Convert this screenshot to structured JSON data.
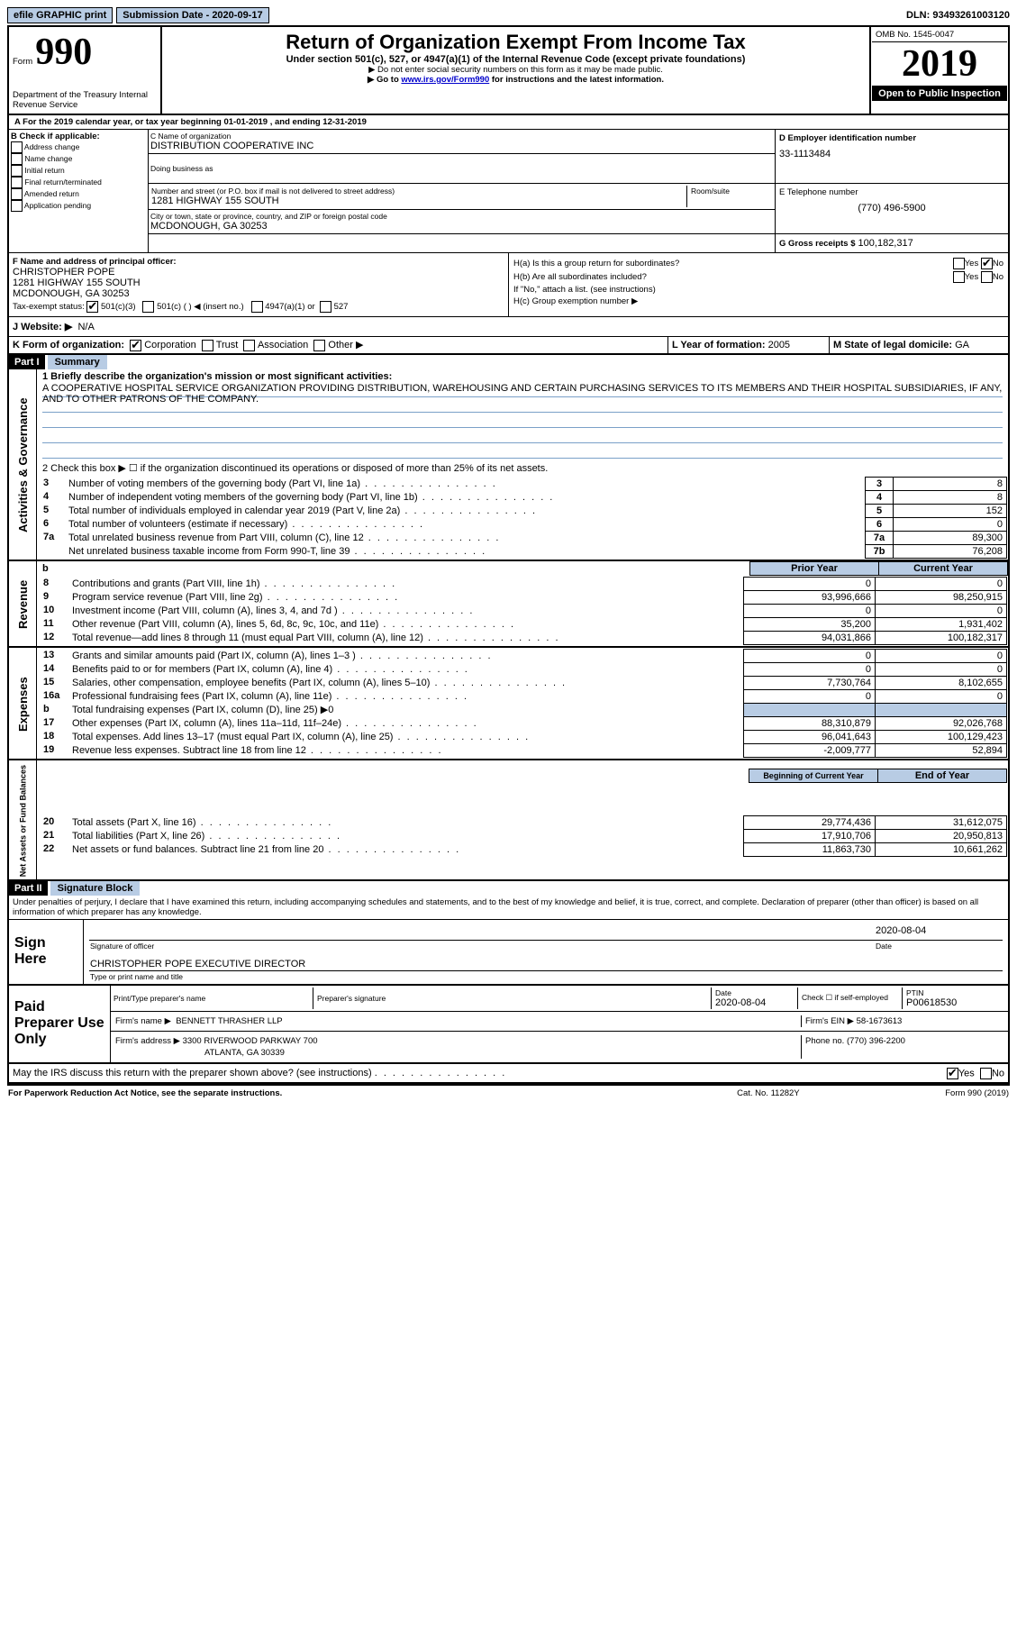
{
  "topbar": {
    "efile": "efile GRAPHIC print",
    "submission_label": "Submission Date - 2020-09-17",
    "dln": "DLN: 93493261003120"
  },
  "header": {
    "form_label": "Form",
    "form_number": "990",
    "dept": "Department of the Treasury Internal Revenue Service",
    "title": "Return of Organization Exempt From Income Tax",
    "subtitle": "Under section 501(c), 527, or 4947(a)(1) of the Internal Revenue Code (except private foundations)",
    "note1": "▶ Do not enter social security numbers on this form as it may be made public.",
    "note2_pre": "▶ Go to ",
    "note2_link": "www.irs.gov/Form990",
    "note2_post": " for instructions and the latest information.",
    "omb": "OMB No. 1545-0047",
    "year": "2019",
    "open_public": "Open to Public Inspection"
  },
  "periodA": "For the 2019 calendar year, or tax year beginning 01-01-2019   , and ending 12-31-2019",
  "boxB": {
    "title": "B Check if applicable:",
    "opts": [
      "Address change",
      "Name change",
      "Initial return",
      "Final return/terminated",
      "Amended return",
      "Application pending"
    ]
  },
  "boxC": {
    "name_label": "C Name of organization",
    "name": "DISTRIBUTION COOPERATIVE INC",
    "dba_label": "Doing business as",
    "addr_label": "Number and street (or P.O. box if mail is not delivered to street address)",
    "room_label": "Room/suite",
    "addr": "1281 HIGHWAY 155 SOUTH",
    "city_label": "City or town, state or province, country, and ZIP or foreign postal code",
    "city": "MCDONOUGH, GA  30253"
  },
  "boxD": {
    "label": "D Employer identification number",
    "value": "33-1113484"
  },
  "boxE": {
    "label": "E Telephone number",
    "value": "(770) 496-5900"
  },
  "boxG": {
    "label": "G Gross receipts $",
    "value": "100,182,317"
  },
  "boxF": {
    "label": "F  Name and address of principal officer:",
    "name": "CHRISTOPHER POPE",
    "addr": "1281 HIGHWAY 155 SOUTH",
    "city": "MCDONOUGH, GA  30253"
  },
  "boxH": {
    "a_label": "H(a)  Is this a group return for subordinates?",
    "b_label": "H(b)  Are all subordinates included?",
    "b_note": "If \"No,\" attach a list. (see instructions)",
    "c_label": "H(c)  Group exemption number ▶",
    "yes": "Yes",
    "no": "No"
  },
  "tax_exempt": {
    "label": "Tax-exempt status:",
    "o1": "501(c)(3)",
    "o2": "501(c) (  ) ◀ (insert no.)",
    "o3": "4947(a)(1) or",
    "o4": "527"
  },
  "website": {
    "label": "J   Website: ▶",
    "value": "N/A"
  },
  "rowK": {
    "label": "K Form of organization:",
    "opts": [
      "Corporation",
      "Trust",
      "Association",
      "Other ▶"
    ],
    "L_label": "L Year of formation:",
    "L_val": "2005",
    "M_label": "M State of legal domicile:",
    "M_val": "GA"
  },
  "part1": {
    "title": "Part I",
    "sub": "Summary"
  },
  "mission": {
    "label": "1   Briefly describe the organization's mission or most significant activities:",
    "text": "A COOPERATIVE HOSPITAL SERVICE ORGANIZATION PROVIDING DISTRIBUTION, WAREHOUSING AND CERTAIN PURCHASING SERVICES TO ITS MEMBERS AND THEIR HOSPITAL SUBSIDIARIES, IF ANY, AND TO OTHER PATRONS OF THE COMPANY."
  },
  "line2": "2   Check this box ▶ ☐ if the organization discontinued its operations or disposed of more than 25% of its net assets.",
  "gov_rows": [
    {
      "n": "3",
      "t": "Number of voting members of the governing body (Part VI, line 1a)",
      "box": "3",
      "v": "8"
    },
    {
      "n": "4",
      "t": "Number of independent voting members of the governing body (Part VI, line 1b)",
      "box": "4",
      "v": "8"
    },
    {
      "n": "5",
      "t": "Total number of individuals employed in calendar year 2019 (Part V, line 2a)",
      "box": "5",
      "v": "152"
    },
    {
      "n": "6",
      "t": "Total number of volunteers (estimate if necessary)",
      "box": "6",
      "v": "0"
    },
    {
      "n": "7a",
      "t": "Total unrelated business revenue from Part VIII, column (C), line 12",
      "box": "7a",
      "v": "89,300"
    },
    {
      "n": "",
      "t": "Net unrelated business taxable income from Form 990-T, line 39",
      "box": "7b",
      "v": "76,208"
    }
  ],
  "cols": {
    "prior": "Prior Year",
    "current": "Current Year"
  },
  "rev_rows": [
    {
      "n": "8",
      "t": "Contributions and grants (Part VIII, line 1h)",
      "p": "0",
      "c": "0"
    },
    {
      "n": "9",
      "t": "Program service revenue (Part VIII, line 2g)",
      "p": "93,996,666",
      "c": "98,250,915"
    },
    {
      "n": "10",
      "t": "Investment income (Part VIII, column (A), lines 3, 4, and 7d )",
      "p": "0",
      "c": "0"
    },
    {
      "n": "11",
      "t": "Other revenue (Part VIII, column (A), lines 5, 6d, 8c, 9c, 10c, and 11e)",
      "p": "35,200",
      "c": "1,931,402"
    },
    {
      "n": "12",
      "t": "Total revenue—add lines 8 through 11 (must equal Part VIII, column (A), line 12)",
      "p": "94,031,866",
      "c": "100,182,317"
    }
  ],
  "exp_rows": [
    {
      "n": "13",
      "t": "Grants and similar amounts paid (Part IX, column (A), lines 1–3 )",
      "p": "0",
      "c": "0"
    },
    {
      "n": "14",
      "t": "Benefits paid to or for members (Part IX, column (A), line 4)",
      "p": "0",
      "c": "0"
    },
    {
      "n": "15",
      "t": "Salaries, other compensation, employee benefits (Part IX, column (A), lines 5–10)",
      "p": "7,730,764",
      "c": "8,102,655"
    },
    {
      "n": "16a",
      "t": "Professional fundraising fees (Part IX, column (A), line 11e)",
      "p": "0",
      "c": "0"
    },
    {
      "n": "b",
      "t": "Total fundraising expenses (Part IX, column (D), line 25) ▶0",
      "p": "",
      "c": "",
      "shade": true
    },
    {
      "n": "17",
      "t": "Other expenses (Part IX, column (A), lines 11a–11d, 11f–24e)",
      "p": "88,310,879",
      "c": "92,026,768"
    },
    {
      "n": "18",
      "t": "Total expenses. Add lines 13–17 (must equal Part IX, column (A), line 25)",
      "p": "96,041,643",
      "c": "100,129,423"
    },
    {
      "n": "19",
      "t": "Revenue less expenses. Subtract line 18 from line 12",
      "p": "-2,009,777",
      "c": "52,894"
    }
  ],
  "cols2": {
    "begin": "Beginning of Current Year",
    "end": "End of Year"
  },
  "net_rows": [
    {
      "n": "20",
      "t": "Total assets (Part X, line 16)",
      "p": "29,774,436",
      "c": "31,612,075"
    },
    {
      "n": "21",
      "t": "Total liabilities (Part X, line 26)",
      "p": "17,910,706",
      "c": "20,950,813"
    },
    {
      "n": "22",
      "t": "Net assets or fund balances. Subtract line 21 from line 20",
      "p": "11,863,730",
      "c": "10,661,262"
    }
  ],
  "sidebars": {
    "gov": "Activities & Governance",
    "rev": "Revenue",
    "exp": "Expenses",
    "net": "Net Assets or Fund Balances"
  },
  "part2": {
    "title": "Part II",
    "sub": "Signature Block"
  },
  "declaration": "Under penalties of perjury, I declare that I have examined this return, including accompanying schedules and statements, and to the best of my knowledge and belief, it is true, correct, and complete. Declaration of preparer (other than officer) is based on all information of which preparer has any knowledge.",
  "sign": {
    "here": "Sign Here",
    "sig_label": "Signature of officer",
    "date": "2020-08-04",
    "date_label": "Date",
    "name": "CHRISTOPHER POPE  EXECUTIVE DIRECTOR",
    "name_label": "Type or print name and title"
  },
  "paid": {
    "here": "Paid Preparer Use Only",
    "pname_label": "Print/Type preparer's name",
    "psig_label": "Preparer's signature",
    "pdate_label": "Date",
    "pdate": "2020-08-04",
    "check_label": "Check ☐ if self-employed",
    "ptin_label": "PTIN",
    "ptin": "P00618530",
    "firm_name_label": "Firm's name      ▶",
    "firm_name": "BENNETT THRASHER LLP",
    "firm_ein_label": "Firm's EIN ▶",
    "firm_ein": "58-1673613",
    "firm_addr_label": "Firm's address ▶",
    "firm_addr": "3300 RIVERWOOD PARKWAY 700",
    "firm_city": "ATLANTA, GA  30339",
    "phone_label": "Phone no.",
    "phone": "(770) 396-2200"
  },
  "bottom": {
    "discuss": "May the IRS discuss this return with the preparer shown above? (see instructions)",
    "yes": "Yes",
    "no": "No",
    "notice": "For Paperwork Reduction Act Notice, see the separate instructions.",
    "cat": "Cat. No. 11282Y",
    "form": "Form 990 (2019)"
  },
  "dividerB": "b"
}
